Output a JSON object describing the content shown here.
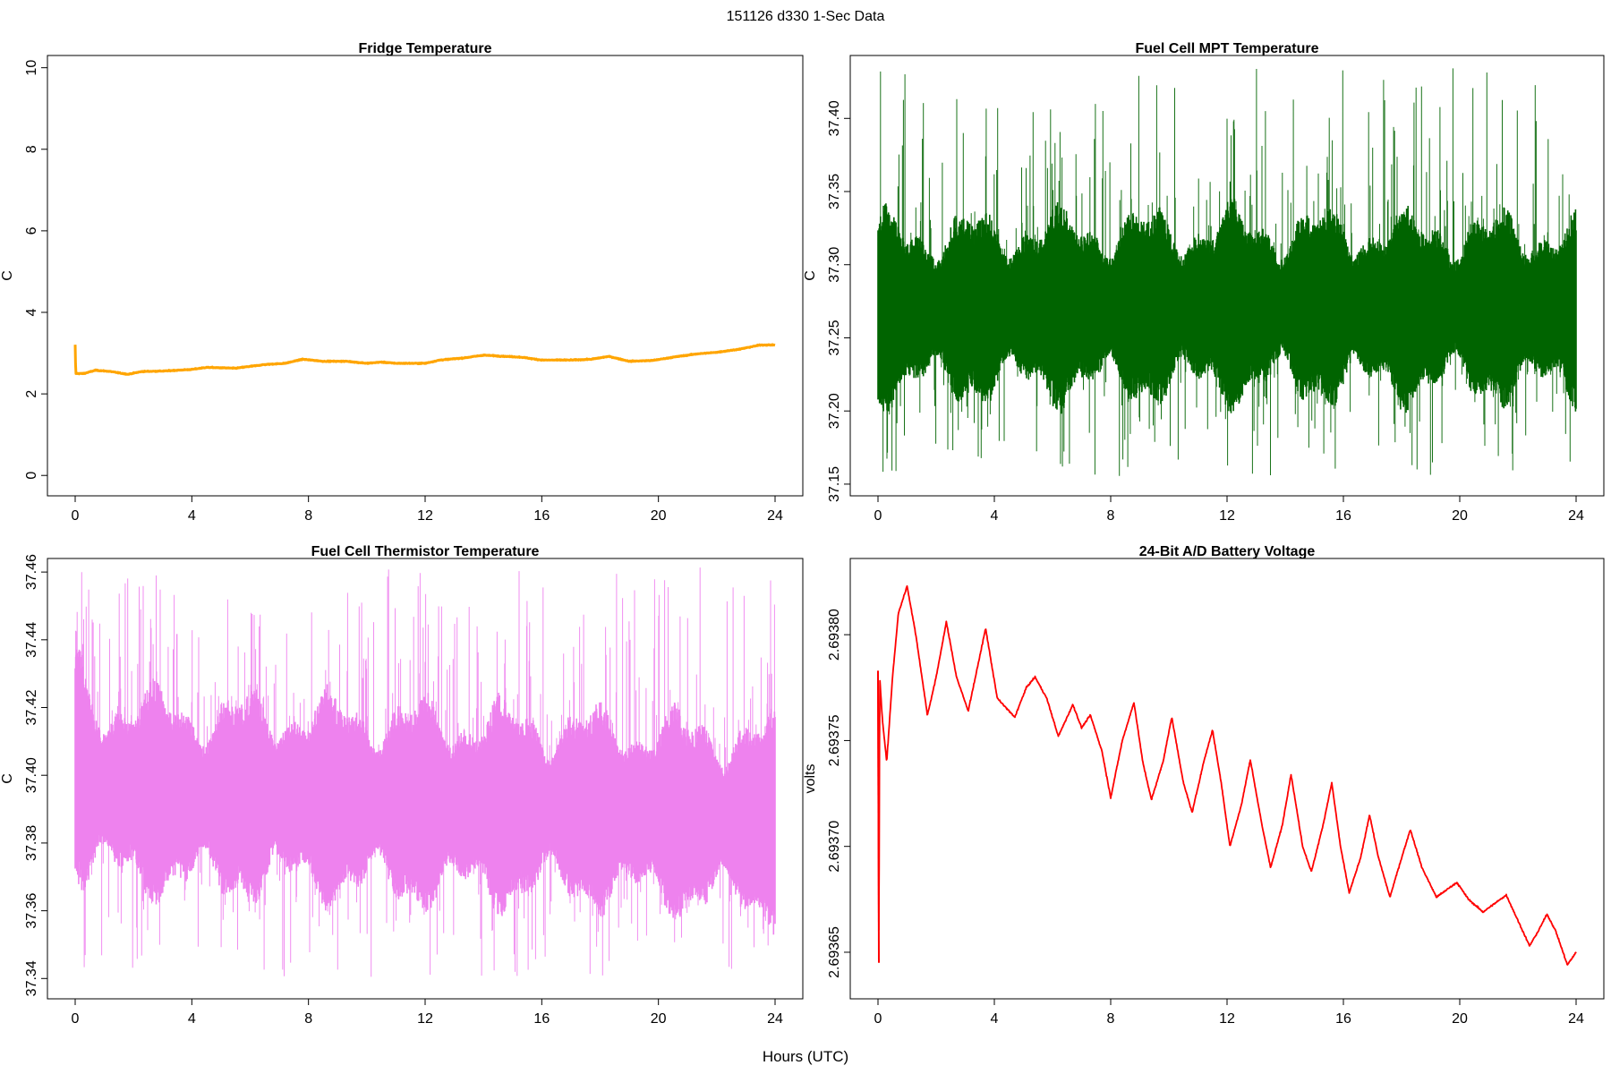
{
  "figure": {
    "title": "151126   d330   1-Sec Data",
    "xlabel": "Hours (UTC)"
  },
  "chart_data": [
    {
      "type": "line",
      "title": "Fridge Temperature",
      "ylabel": "C",
      "xlim": [
        0,
        24
      ],
      "ylim": [
        -0.5,
        10.3
      ],
      "xticks": [
        0,
        4,
        8,
        12,
        16,
        20,
        24
      ],
      "yticks": [
        0,
        2,
        4,
        6,
        8,
        10
      ],
      "ytick_labels": [
        "0",
        "2",
        "4",
        "6",
        "8",
        "10"
      ],
      "color": "#FFA500",
      "rendering": "smooth",
      "noise": 0.02,
      "points": [
        [
          0,
          3.2
        ],
        [
          0.02,
          2.5
        ],
        [
          0.3,
          2.5
        ],
        [
          0.7,
          2.58
        ],
        [
          1.2,
          2.55
        ],
        [
          1.8,
          2.48
        ],
        [
          2.3,
          2.55
        ],
        [
          3.0,
          2.56
        ],
        [
          4.0,
          2.6
        ],
        [
          4.5,
          2.65
        ],
        [
          5.5,
          2.63
        ],
        [
          6.5,
          2.72
        ],
        [
          7.2,
          2.75
        ],
        [
          7.8,
          2.85
        ],
        [
          8.5,
          2.8
        ],
        [
          9.3,
          2.8
        ],
        [
          10.0,
          2.75
        ],
        [
          10.5,
          2.78
        ],
        [
          11.0,
          2.75
        ],
        [
          12.0,
          2.75
        ],
        [
          12.5,
          2.83
        ],
        [
          13.3,
          2.88
        ],
        [
          14.0,
          2.95
        ],
        [
          14.5,
          2.93
        ],
        [
          15.3,
          2.9
        ],
        [
          16.0,
          2.83
        ],
        [
          17.0,
          2.83
        ],
        [
          17.7,
          2.85
        ],
        [
          18.3,
          2.92
        ],
        [
          19.0,
          2.8
        ],
        [
          19.8,
          2.82
        ],
        [
          20.5,
          2.9
        ],
        [
          21.3,
          2.98
        ],
        [
          22.0,
          3.02
        ],
        [
          22.8,
          3.1
        ],
        [
          23.5,
          3.2
        ],
        [
          24.0,
          3.2
        ]
      ]
    },
    {
      "type": "line",
      "title": "Fuel Cell MPT Temperature",
      "ylabel": "C",
      "xlim": [
        0,
        24
      ],
      "ylim": [
        37.142,
        37.443
      ],
      "xticks": [
        0,
        4,
        8,
        12,
        16,
        20,
        24
      ],
      "yticks": [
        37.15,
        37.2,
        37.25,
        37.3,
        37.35,
        37.4
      ],
      "ytick_labels": [
        "37.15",
        "37.20",
        "37.25",
        "37.30",
        "37.35",
        "37.40"
      ],
      "color": "#006400",
      "rendering": "envelope",
      "core_band": [
        [
          0,
          37.225,
          37.315
        ],
        [
          12,
          37.225,
          37.318
        ],
        [
          24,
          37.225,
          37.315
        ]
      ],
      "range": [
        37.155,
        37.438
      ],
      "points": []
    },
    {
      "type": "line",
      "title": "Fuel Cell Thermistor Temperature",
      "ylabel": "C",
      "xlim": [
        0,
        24
      ],
      "ylim": [
        37.334,
        37.464
      ],
      "xticks": [
        0,
        4,
        8,
        12,
        16,
        20,
        24
      ],
      "yticks": [
        37.34,
        37.36,
        37.38,
        37.4,
        37.42,
        37.44,
        37.46
      ],
      "ytick_labels": [
        "37.34",
        "37.36",
        "37.38",
        "37.40",
        "37.42",
        "37.44",
        "37.46"
      ],
      "color": "#EE82EE",
      "rendering": "envelope",
      "core_band": [
        [
          0,
          37.378,
          37.428
        ],
        [
          0.6,
          37.375,
          37.418
        ],
        [
          4,
          37.372,
          37.415
        ],
        [
          8,
          37.372,
          37.415
        ],
        [
          12,
          37.37,
          37.413
        ],
        [
          16,
          37.37,
          37.412
        ],
        [
          20,
          37.368,
          37.41
        ],
        [
          24,
          37.365,
          37.408
        ]
      ],
      "range": [
        37.34,
        37.462
      ],
      "points": []
    },
    {
      "type": "line",
      "title": "24-Bit A/D Battery Voltage",
      "ylabel": "volts",
      "xlim": [
        0,
        24
      ],
      "ylim": [
        2.693628,
        2.693836
      ],
      "xticks": [
        0,
        4,
        8,
        12,
        16,
        20,
        24
      ],
      "yticks": [
        2.69365,
        2.6937,
        2.69375,
        2.6938
      ],
      "ytick_labels": [
        "2.69365",
        "2.69370",
        "2.69375",
        "2.69380"
      ],
      "color": "#FF0000",
      "rendering": "detailed",
      "noise": 8e-07,
      "points": [
        [
          0,
          2.693783
        ],
        [
          0.03,
          2.693645
        ],
        [
          0.06,
          2.69378
        ],
        [
          0.15,
          2.69376
        ],
        [
          0.3,
          2.69374
        ],
        [
          0.5,
          2.69378
        ],
        [
          0.7,
          2.69381
        ],
        [
          1.0,
          2.693823
        ],
        [
          1.3,
          2.6938
        ],
        [
          1.7,
          2.693762
        ],
        [
          2.0,
          2.69378
        ],
        [
          2.35,
          2.693806
        ],
        [
          2.7,
          2.69378
        ],
        [
          3.1,
          2.693764
        ],
        [
          3.35,
          2.69378
        ],
        [
          3.7,
          2.693803
        ],
        [
          4.1,
          2.69377
        ],
        [
          4.7,
          2.693761
        ],
        [
          5.1,
          2.693775
        ],
        [
          5.4,
          2.69378
        ],
        [
          5.8,
          2.69377
        ],
        [
          6.2,
          2.693752
        ],
        [
          6.7,
          2.693767
        ],
        [
          7.0,
          2.693756
        ],
        [
          7.3,
          2.693762
        ],
        [
          7.7,
          2.693745
        ],
        [
          8.0,
          2.693723
        ],
        [
          8.4,
          2.69375
        ],
        [
          8.8,
          2.693768
        ],
        [
          9.1,
          2.69374
        ],
        [
          9.4,
          2.693722
        ],
        [
          9.8,
          2.69374
        ],
        [
          10.1,
          2.693761
        ],
        [
          10.5,
          2.69373
        ],
        [
          10.8,
          2.693716
        ],
        [
          11.2,
          2.69374
        ],
        [
          11.5,
          2.693755
        ],
        [
          11.8,
          2.69373
        ],
        [
          12.1,
          2.6937
        ],
        [
          12.5,
          2.69372
        ],
        [
          12.8,
          2.693741
        ],
        [
          13.2,
          2.69371
        ],
        [
          13.5,
          2.69369
        ],
        [
          13.9,
          2.69371
        ],
        [
          14.2,
          2.693734
        ],
        [
          14.6,
          2.6937
        ],
        [
          14.9,
          2.693688
        ],
        [
          15.3,
          2.69371
        ],
        [
          15.6,
          2.69373
        ],
        [
          15.9,
          2.6937
        ],
        [
          16.2,
          2.693678
        ],
        [
          16.6,
          2.693695
        ],
        [
          16.9,
          2.693715
        ],
        [
          17.2,
          2.693695
        ],
        [
          17.6,
          2.693676
        ],
        [
          17.9,
          2.69369
        ],
        [
          18.3,
          2.693708
        ],
        [
          18.7,
          2.69369
        ],
        [
          19.2,
          2.693676
        ],
        [
          19.6,
          2.69368
        ],
        [
          19.9,
          2.693683
        ],
        [
          20.3,
          2.693675
        ],
        [
          20.8,
          2.693669
        ],
        [
          21.2,
          2.693673
        ],
        [
          21.6,
          2.693677
        ],
        [
          22.0,
          2.693665
        ],
        [
          22.4,
          2.693653
        ],
        [
          22.7,
          2.69366
        ],
        [
          23.0,
          2.693668
        ],
        [
          23.3,
          2.69366
        ],
        [
          23.7,
          2.693644
        ],
        [
          24.0,
          2.69365
        ]
      ]
    }
  ]
}
